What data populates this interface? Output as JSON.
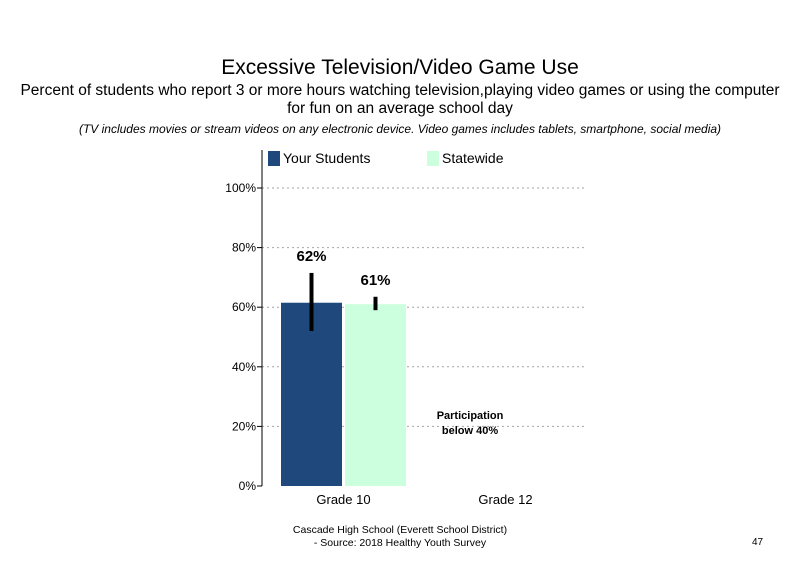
{
  "slide": {
    "title": "Excessive Television/Video Game Use",
    "subtitle": "Percent of students  who report 3 or more hours watching television,playing video games  or using the computer for fun on an average school day",
    "note": "(TV includes movies or stream videos on any electronic device. Video games includes tablets, smartphone,  social media)",
    "footer_line1": "Cascade High School (Everett School District)",
    "footer_line2": "- Source: 2018 Healthy  Youth Survey",
    "page_number": "47"
  },
  "chart_data": {
    "type": "bar",
    "categories": [
      "Grade 10",
      "Grade 12"
    ],
    "series": [
      {
        "name": "Your Students",
        "color": "#1f497d",
        "values": [
          61.5,
          null
        ],
        "error_bars": [
          [
            52,
            71.5
          ],
          null
        ],
        "data_labels": [
          "62%",
          ""
        ]
      },
      {
        "name": "Statewide",
        "color": "#ccffdd",
        "values": [
          61,
          null
        ],
        "error_bars": [
          [
            59,
            63.5
          ],
          null
        ],
        "data_labels": [
          "61%",
          ""
        ]
      }
    ],
    "y_ticks": [
      "0%",
      "20%",
      "40%",
      "60%",
      "80%",
      "100%"
    ],
    "ylim": [
      0,
      100
    ],
    "grid": true,
    "legend_position": "top",
    "annotation": {
      "category": "Grade 12",
      "lines": [
        "Participation",
        "below 40%"
      ]
    }
  }
}
